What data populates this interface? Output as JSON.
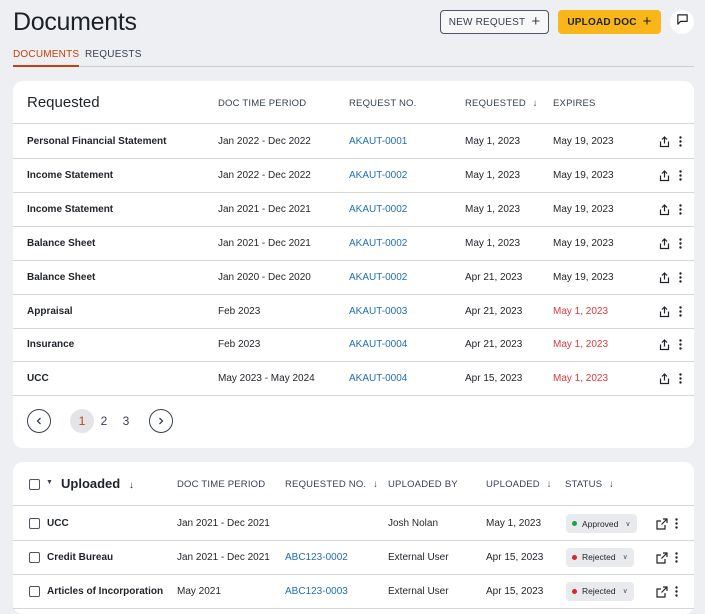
{
  "page": {
    "title": "Documents",
    "new_request_label": "NEW REQUEST",
    "upload_doc_label": "UPLOAD DOC",
    "tabs": [
      {
        "label": "DOCUMENTS",
        "active": true
      },
      {
        "label": "REQUESTS",
        "active": false
      }
    ]
  },
  "requested": {
    "title": "Requested",
    "columns": {
      "period": "DOC TIME PERIOD",
      "request_no": "REQUEST NO.",
      "requested": "REQUESTED",
      "expires": "EXPIRES"
    },
    "rows": [
      {
        "name": "Personal Financial Statement",
        "period": "Jan 2022 - Dec 2022",
        "request_no": "AKAUT-0001",
        "requested": "May 1, 2023",
        "expires": "May 19, 2023",
        "expired": false
      },
      {
        "name": "Income Statement",
        "period": "Jan 2022 - Dec 2022",
        "request_no": "AKAUT-0002",
        "requested": "May 1, 2023",
        "expires": "May 19, 2023",
        "expired": false
      },
      {
        "name": "Income Statement",
        "period": "Jan 2021 - Dec 2021",
        "request_no": "AKAUT-0002",
        "requested": "May 1, 2023",
        "expires": "May 19, 2023",
        "expired": false
      },
      {
        "name": "Balance Sheet",
        "period": "Jan 2021 - Dec 2021",
        "request_no": "AKAUT-0002",
        "requested": "May 1, 2023",
        "expires": "May 19, 2023",
        "expired": false
      },
      {
        "name": "Balance Sheet",
        "period": "Jan 2020 - Dec 2020",
        "request_no": "AKAUT-0002",
        "requested": "Apr 21, 2023",
        "expires": "May 19, 2023",
        "expired": false
      },
      {
        "name": "Appraisal",
        "period": "Feb 2023",
        "request_no": "AKAUT-0003",
        "requested": "Apr 21, 2023",
        "expires": "May 1, 2023",
        "expired": true
      },
      {
        "name": "Insurance",
        "period": "Feb 2023",
        "request_no": "AKAUT-0004",
        "requested": "Apr 21, 2023",
        "expires": "May 1, 2023",
        "expired": true
      },
      {
        "name": "UCC",
        "period": "May 2023 - May 2024",
        "request_no": "AKAUT-0004",
        "requested": "Apr 15, 2023",
        "expires": "May 1, 2023",
        "expired": true
      }
    ],
    "pagination": {
      "pages": [
        "1",
        "2",
        "3"
      ],
      "current": "1"
    }
  },
  "uploaded": {
    "title": "Uploaded",
    "columns": {
      "period": "DOC TIME PERIOD",
      "requested_no": "REQUESTED NO.",
      "uploaded_by": "UPLOADED BY",
      "uploaded": "UPLOADED",
      "status": "STATUS"
    },
    "rows": [
      {
        "name": "UCC",
        "period": "Jan 2021 - Dec 2021",
        "requested_no": "",
        "uploaded_by": "Josh Nolan",
        "uploaded": "May 1, 2023",
        "status": "Approved"
      },
      {
        "name": "Credit Bureau",
        "period": "Jan 2021 - Dec 2021",
        "requested_no": "ABC123-0002",
        "uploaded_by": "External User",
        "uploaded": "Apr 15, 2023",
        "status": "Rejected"
      },
      {
        "name": "Articles of Incorporation",
        "period": "May 2021",
        "requested_no": "ABC123-0003",
        "uploaded_by": "External User",
        "uploaded": "Apr 15, 2023",
        "status": "Rejected"
      }
    ]
  },
  "colors": {
    "accent": "#f8b61a",
    "tab_active": "#c2410c",
    "link": "#1f6fb2",
    "expired": "#d83a3a",
    "approved": "#16a34a",
    "rejected": "#dc2626"
  },
  "icons": {
    "share": "share-icon",
    "more": "more-vertical-icon",
    "external": "open-external-icon",
    "chat": "chat-icon",
    "prev": "chevron-left-icon",
    "next": "chevron-right-icon"
  }
}
